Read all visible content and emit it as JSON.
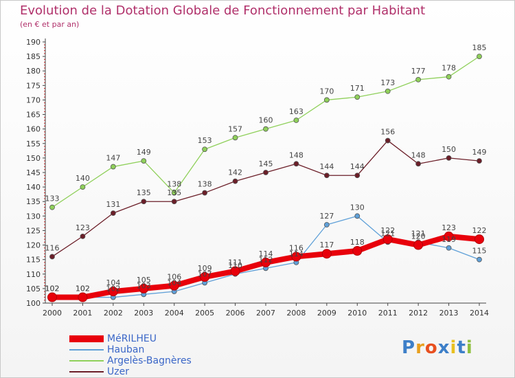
{
  "chart_data": {
    "type": "line",
    "title": "Evolution de la Dotation Globale de Fonctionnement par Habitant",
    "subtitle": "(en € et par an)",
    "x": [
      "2000",
      "2001",
      "2002",
      "2003",
      "2004",
      "2005",
      "2006",
      "2007",
      "2008",
      "2009",
      "2010",
      "2011",
      "2012",
      "2013",
      "2014"
    ],
    "ylim": [
      100,
      190
    ],
    "yticks": [
      100,
      105,
      110,
      115,
      120,
      125,
      130,
      135,
      140,
      145,
      150,
      155,
      160,
      165,
      170,
      175,
      180,
      185,
      190
    ],
    "grid": false,
    "legend_position": "bottom-left",
    "series": [
      {
        "name": "MéRILHEU",
        "color": "#e8000b",
        "values": [
          102,
          102,
          104,
          105,
          106,
          109,
          111,
          114,
          116,
          117,
          118,
          122,
          120,
          123,
          122
        ]
      },
      {
        "name": "Hauban",
        "color": "#5fa0d8",
        "values": [
          102,
          102,
          102,
          103,
          104,
          107,
          110,
          112,
          114,
          127,
          130,
          121,
          121,
          119,
          115
        ]
      },
      {
        "name": "Argelès-Bagnères",
        "color": "#8fd05a",
        "values": [
          133,
          140,
          147,
          149,
          138,
          153,
          157,
          160,
          163,
          170,
          171,
          173,
          177,
          178,
          185
        ]
      },
      {
        "name": "Uzer",
        "color": "#6b1e28",
        "values": [
          116,
          123,
          131,
          135,
          135,
          138,
          142,
          145,
          148,
          144,
          144,
          156,
          148,
          150,
          149
        ]
      }
    ]
  },
  "logo": {
    "letters": [
      "P",
      "r",
      "o",
      "x",
      "i",
      "t",
      "i"
    ],
    "colors": [
      "#3d7fc8",
      "#e8a020",
      "#e85020",
      "#3d7fc8",
      "#e8c020",
      "#3d7fc8",
      "#8fc040"
    ]
  }
}
